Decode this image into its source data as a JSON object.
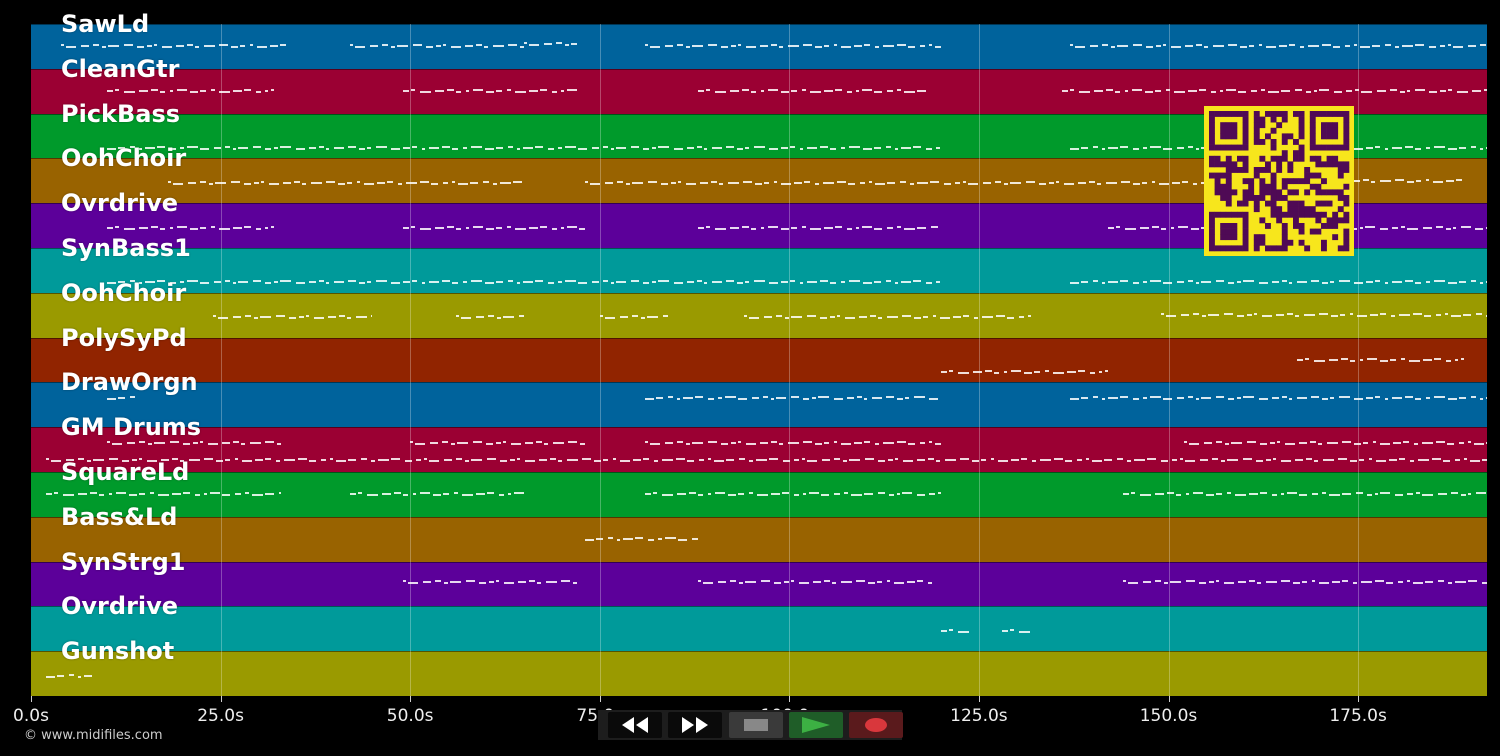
{
  "tracks": [
    {
      "name": "SawLd",
      "color": "#00639c",
      "notes": [
        [
          4,
          34,
          0.45
        ],
        [
          42,
          65,
          0.45
        ],
        [
          81,
          120,
          0.45
        ],
        [
          137,
          192,
          0.45
        ],
        [
          65,
          72,
          0.4
        ]
      ]
    },
    {
      "name": "CleanGtr",
      "color": "#9b0033",
      "notes": [
        [
          10,
          32,
          0.45
        ],
        [
          49,
          72,
          0.45
        ],
        [
          88,
          118,
          0.45
        ],
        [
          136,
          192,
          0.45
        ]
      ]
    },
    {
      "name": "PickBass",
      "color": "#009a2b",
      "notes": [
        [
          10,
          120,
          0.72
        ],
        [
          137,
          192,
          0.72
        ]
      ]
    },
    {
      "name": "OohChoir",
      "color": "#996300",
      "notes": [
        [
          18,
          65,
          0.5
        ],
        [
          73,
          158,
          0.5
        ],
        [
          159,
          189,
          0.45
        ]
      ]
    },
    {
      "name": "Ovrdrive",
      "color": "#5c009a",
      "notes": [
        [
          10,
          32,
          0.5
        ],
        [
          49,
          73,
          0.5
        ],
        [
          88,
          120,
          0.5
        ],
        [
          142,
          192,
          0.5
        ]
      ]
    },
    {
      "name": "SynBass1",
      "color": "#009a9a",
      "notes": [
        [
          10,
          120,
          0.72
        ],
        [
          137,
          192,
          0.72
        ]
      ]
    },
    {
      "name": "OohChoir",
      "color": "#9a9a00",
      "notes": [
        [
          24,
          45,
          0.5
        ],
        [
          56,
          65,
          0.5
        ],
        [
          75,
          84,
          0.5
        ],
        [
          94,
          132,
          0.5
        ],
        [
          149,
          192,
          0.45
        ]
      ]
    },
    {
      "name": "PolySyPd",
      "color": "#912400",
      "notes": [
        [
          120,
          142,
          0.72
        ],
        [
          167,
          189,
          0.45
        ]
      ]
    },
    {
      "name": "DrawOrgn",
      "color": "#00639c",
      "notes": [
        [
          10,
          14,
          0.3
        ],
        [
          81,
          120,
          0.3
        ],
        [
          137,
          192,
          0.3
        ]
      ]
    },
    {
      "name": "GM Drums",
      "color": "#9b0033",
      "notes": [
        [
          10,
          33,
          0.3
        ],
        [
          50,
          73,
          0.3
        ],
        [
          81,
          120,
          0.3
        ],
        [
          152,
          192,
          0.3
        ],
        [
          2,
          192,
          0.68
        ]
      ]
    },
    {
      "name": "SquareLd",
      "color": "#009a2b",
      "notes": [
        [
          2,
          33,
          0.45
        ],
        [
          42,
          65,
          0.45
        ],
        [
          81,
          120,
          0.45
        ],
        [
          144,
          192,
          0.45
        ]
      ]
    },
    {
      "name": "Bass&Ld",
      "color": "#996300",
      "notes": [
        [
          73,
          88,
          0.45
        ]
      ]
    },
    {
      "name": "SynStrg1",
      "color": "#5c009a",
      "notes": [
        [
          49,
          72,
          0.4
        ],
        [
          88,
          119,
          0.4
        ],
        [
          144,
          192,
          0.4
        ]
      ]
    },
    {
      "name": "Ovrdrive",
      "color": "#009a9a",
      "notes": [
        [
          120,
          124,
          0.5
        ],
        [
          128,
          132,
          0.5
        ]
      ]
    },
    {
      "name": "Gunshot",
      "color": "#9a9a00",
      "notes": [
        [
          2,
          8,
          0.5
        ]
      ]
    }
  ],
  "axis": {
    "max_seconds": 192,
    "ticks": [
      {
        "value": 0,
        "label": "0.0s"
      },
      {
        "value": 25,
        "label": "25.0s"
      },
      {
        "value": 50,
        "label": "50.0s"
      },
      {
        "value": 75,
        "label": "75.0s"
      },
      {
        "value": 100,
        "label": "100.0s"
      },
      {
        "value": 125,
        "label": "125.0s"
      },
      {
        "value": 150,
        "label": "150.0s"
      },
      {
        "value": 175,
        "label": "175.0s"
      }
    ]
  },
  "footer": {
    "copyright": "© www.midifiles.com"
  },
  "transport": {
    "buttons": [
      {
        "name": "rewind-button",
        "icon": "rewind-icon"
      },
      {
        "name": "fast-forward-button",
        "icon": "fast-forward-icon"
      },
      {
        "name": "stop-button",
        "icon": "stop-icon"
      },
      {
        "name": "play-button",
        "icon": "play-icon"
      },
      {
        "name": "record-button",
        "icon": "record-icon"
      }
    ],
    "colors": {
      "stop": "#888888",
      "play": "#3cb043",
      "record": "#d9373c"
    }
  },
  "qr": {
    "fg": "#4f0a55",
    "bg": "#f7e61c"
  }
}
